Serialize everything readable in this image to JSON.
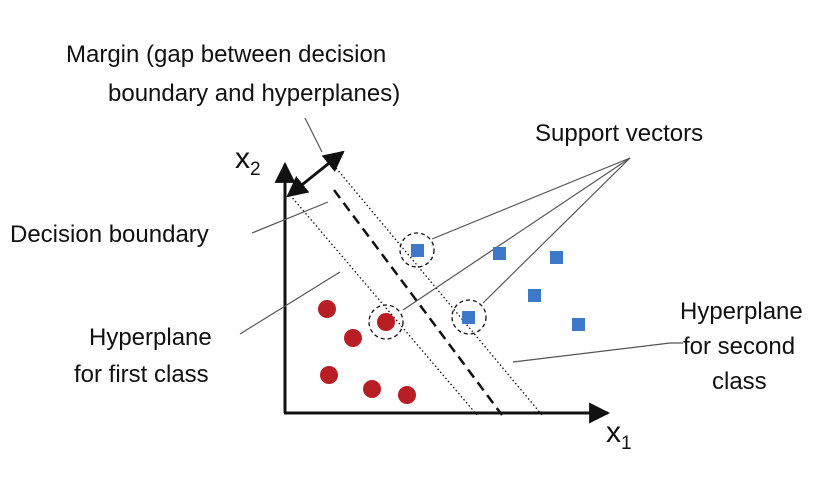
{
  "labels": {
    "margin_line1": "Margin (gap between decision",
    "margin_line2": "boundary and hyperplanes)",
    "support_vectors": "Support vectors",
    "decision_boundary": "Decision boundary",
    "hyperplane_first_line1": "Hyperplane",
    "hyperplane_first_line2": "for first class",
    "hyperplane_second_line1": "Hyperplane",
    "hyperplane_second_line2": "for second",
    "hyperplane_second_line3": "class"
  },
  "axes": {
    "x_main": "x",
    "x_sub": "1",
    "y_main": "x",
    "y_sub": "2"
  },
  "colors": {
    "class_one": "#b81e24",
    "class_two": "#3d78c9",
    "ink": "#111111",
    "leader": "#555555"
  }
}
